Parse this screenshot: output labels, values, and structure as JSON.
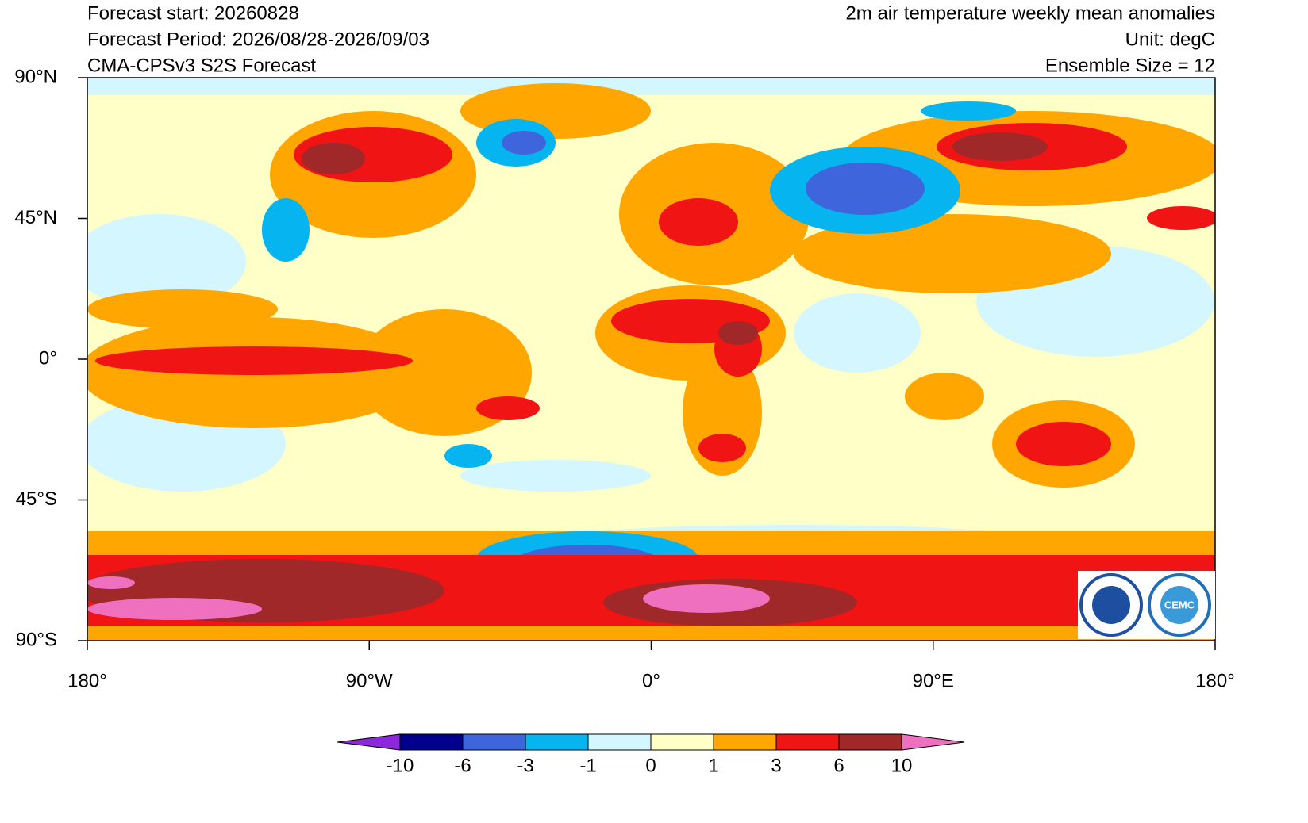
{
  "header": {
    "left": [
      "Forecast start: 20260828",
      "Forecast Period: 2026/08/28-2026/09/03",
      "CMA-CPSv3 S2S Forecast"
    ],
    "right": [
      "2m air temperature weekly mean anomalies",
      "Unit: degC",
      "Ensemble Size = 12"
    ]
  },
  "map": {
    "lat_labels": [
      "90°N",
      "45°N",
      "0°",
      "45°S",
      "90°S"
    ],
    "lon_labels": [
      "180°",
      "90°W",
      "0°",
      "90°E",
      "180°"
    ]
  },
  "colorbar": {
    "levels": [
      -10,
      -6,
      -3,
      -1,
      0,
      1,
      3,
      6,
      10
    ],
    "colors": [
      "#8c28dc",
      "#00008c",
      "#3f65dc",
      "#06b4f0",
      "#d4f6ff",
      "#ffffc8",
      "#ffa600",
      "#f01414",
      "#a02828",
      "#f070c0"
    ]
  },
  "logo": {
    "text": "CEMC"
  }
}
